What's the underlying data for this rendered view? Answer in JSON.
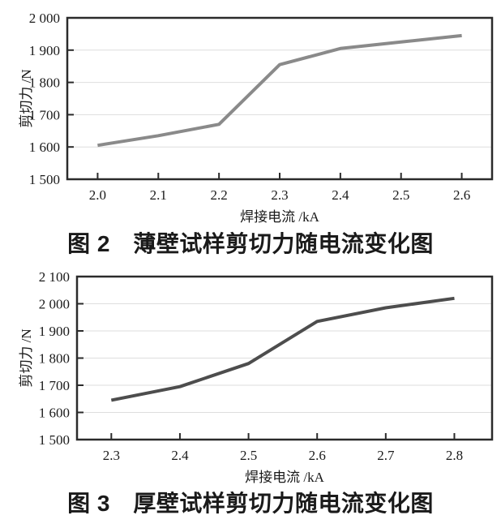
{
  "styles": {
    "background": "#ffffff",
    "frame_color": "#2b2b2b",
    "grid_color": "#dedede",
    "tick_color": "#2b2b2b",
    "text_color": "#1a1a1a"
  },
  "chart_data": [
    {
      "type": "line",
      "title": "图 2　薄壁试样剪切力随电流变化图",
      "xlabel": "焊接电流 /kA",
      "ylabel": "剪切力 /N",
      "x": [
        2.0,
        2.1,
        2.2,
        2.3,
        2.4,
        2.5,
        2.6
      ],
      "y": [
        1605,
        1635,
        1670,
        1855,
        1905,
        1925,
        1945
      ],
      "xtick_labels": [
        "2.0",
        "2.1",
        "2.2",
        "2.3",
        "2.4",
        "2.5",
        "2.6"
      ],
      "ytick_values": [
        1500,
        1600,
        1700,
        1800,
        1900,
        2000
      ],
      "ytick_labels": [
        "1 500",
        "1 600",
        "1 700",
        "1 800",
        "1 900",
        "2 000"
      ],
      "xlim": [
        1.95,
        2.65
      ],
      "ylim": [
        1500,
        2000
      ],
      "grid": true,
      "legend": "none",
      "line_color": "#8a8a8a"
    },
    {
      "type": "line",
      "title": "图 3　厚壁试样剪切力随电流变化图",
      "xlabel": "焊接电流 /kA",
      "ylabel": "剪切力 /N",
      "x": [
        2.3,
        2.4,
        2.5,
        2.6,
        2.7,
        2.8
      ],
      "y": [
        1645,
        1695,
        1780,
        1935,
        1985,
        2020
      ],
      "xtick_labels": [
        "2.3",
        "2.4",
        "2.5",
        "2.6",
        "2.7",
        "2.8"
      ],
      "ytick_values": [
        1500,
        1600,
        1700,
        1800,
        1900,
        2000,
        2100
      ],
      "ytick_labels": [
        "1 500",
        "1 600",
        "1 700",
        "1 800",
        "1 900",
        "2 000",
        "2 100"
      ],
      "xlim": [
        2.25,
        2.855
      ],
      "ylim": [
        1500,
        2100
      ],
      "grid": true,
      "legend": "none",
      "line_color": "#4d4d4d"
    }
  ]
}
